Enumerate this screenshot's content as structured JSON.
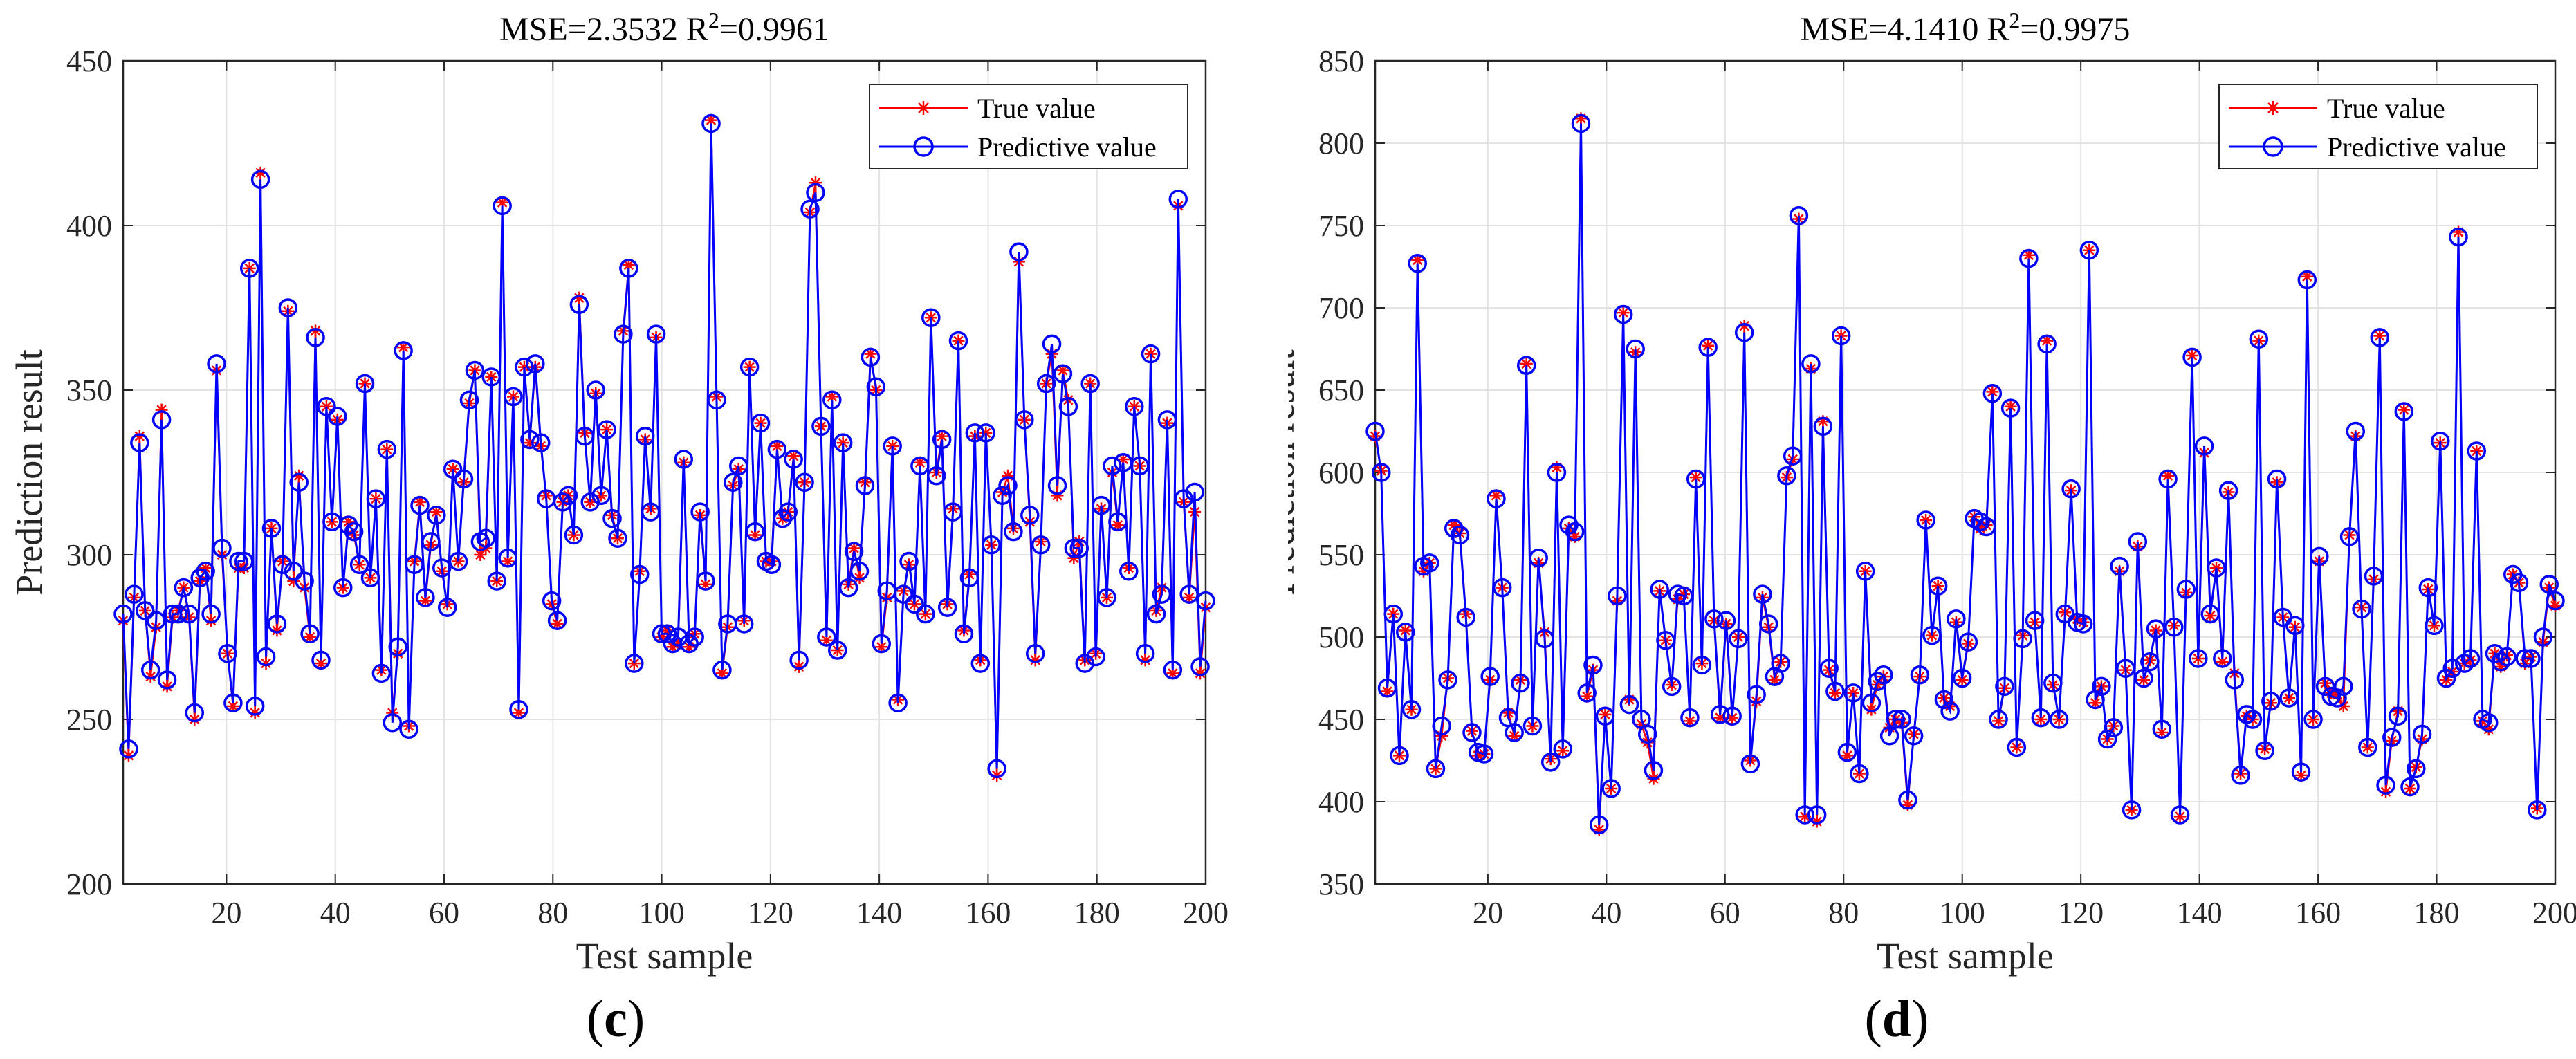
{
  "colors": {
    "true": "#ff0000",
    "pred": "#0000ff",
    "grid": "#e3e3e3",
    "axis": "#262626"
  },
  "chart_data": [
    {
      "id": "c",
      "type": "line",
      "panel_label": "c",
      "title_prefix": "MSE=2.3532 R",
      "title_sup": "2",
      "title_suffix": "=0.9961",
      "xlabel": "Test sample",
      "ylabel": "Prediction result",
      "xlim": [
        1,
        200
      ],
      "ylim": [
        200,
        450
      ],
      "xticks": [
        20,
        40,
        60,
        80,
        100,
        120,
        140,
        160,
        180,
        200
      ],
      "yticks": [
        200,
        250,
        300,
        350,
        400,
        450
      ],
      "grid": true,
      "legend_position": "top-right",
      "series": [
        {
          "name": "True value",
          "marker": "asterisk",
          "values": [
            280,
            239,
            287,
            336,
            283,
            263,
            278,
            344,
            260,
            281,
            283,
            290,
            281,
            250,
            292,
            296,
            280,
            356,
            300,
            270,
            254,
            296,
            296,
            387,
            252,
            416,
            267,
            308,
            277,
            298,
            374,
            292,
            324,
            290,
            275,
            368,
            267,
            345,
            310,
            341,
            290,
            310,
            306,
            297,
            352,
            293,
            317,
            265,
            332,
            252,
            270,
            363,
            248,
            298,
            316,
            286,
            303,
            313,
            295,
            285,
            326,
            298,
            322,
            346,
            356,
            300,
            302,
            354,
            292,
            407,
            298,
            348,
            252,
            357,
            334,
            357,
            333,
            318,
            285,
            279,
            316,
            318,
            306,
            378,
            337,
            316,
            349,
            318,
            338,
            312,
            305,
            368,
            388,
            267,
            295,
            335,
            314,
            366,
            275,
            277,
            272,
            273,
            328,
            272,
            276,
            312,
            291,
            432,
            348,
            264,
            278,
            321,
            326,
            280,
            357,
            306,
            340,
            298,
            298,
            333,
            311,
            313,
            330,
            266,
            322,
            404,
            413,
            339,
            274,
            348,
            271,
            334,
            291,
            302,
            293,
            322,
            361,
            350,
            272,
            287,
            333,
            256,
            289,
            297,
            285,
            328,
            282,
            372,
            325,
            336,
            285,
            314,
            365,
            277,
            294,
            336,
            268,
            337,
            303,
            233,
            319,
            324,
            308,
            389,
            341,
            310,
            268,
            304,
            352,
            361,
            318,
            356,
            347,
            299,
            304,
            268,
            352,
            270,
            314,
            287,
            325,
            309,
            329,
            296,
            345,
            327,
            268,
            361,
            283,
            290,
            340,
            264,
            406,
            316,
            287,
            313,
            264,
            284
          ],
          "pred": [
            282,
            241,
            288,
            334,
            283,
            265,
            280,
            341,
            262,
            282,
            282,
            290,
            282,
            252,
            293,
            295,
            282,
            358,
            302,
            270,
            255,
            298,
            298,
            387,
            254,
            414,
            269,
            308,
            279,
            297,
            375,
            295,
            322,
            292,
            276,
            366,
            268,
            345,
            310,
            342,
            290,
            309,
            307,
            297,
            352,
            293,
            317,
            264,
            332,
            249,
            272,
            362,
            247,
            297,
            315,
            287,
            304,
            312,
            296,
            284,
            326,
            298,
            323,
            347,
            356,
            304,
            305,
            354,
            292,
            406,
            299,
            348,
            253,
            357,
            335,
            358,
            334,
            317,
            286,
            280,
            316,
            318,
            306,
            376,
            336,
            316,
            350,
            318,
            338,
            311,
            305,
            367,
            387,
            267,
            294,
            336,
            313,
            367,
            276,
            276,
            273,
            275,
            329,
            273,
            275,
            313,
            292,
            431,
            347,
            265,
            279,
            322,
            327,
            279,
            357,
            307,
            340,
            298,
            297,
            332,
            311,
            313,
            329,
            268,
            322,
            405,
            410,
            339,
            275,
            347,
            271,
            334,
            290,
            301,
            295,
            321,
            360,
            351,
            273,
            289,
            333,
            255,
            288,
            298,
            285,
            327,
            282,
            372,
            324,
            335,
            284,
            313,
            365,
            276,
            293,
            337,
            267,
            337,
            303,
            235,
            318,
            321,
            307,
            392,
            341,
            312,
            270,
            303,
            352,
            364,
            321,
            355,
            345,
            302,
            302,
            267,
            352,
            269,
            315,
            287,
            327,
            310,
            328,
            295,
            345,
            327,
            270,
            361,
            282,
            288,
            341,
            265,
            408,
            317,
            288,
            319,
            266,
            286
          ]
        }
      ]
    },
    {
      "id": "d",
      "type": "line",
      "panel_label": "d",
      "title_prefix": "MSE=4.1410 R",
      "title_sup": "2",
      "title_suffix": "=0.9975",
      "xlabel": "Test sample",
      "ylabel": "Prediction result",
      "xlim": [
        1,
        200
      ],
      "ylim": [
        350,
        850
      ],
      "xticks": [
        20,
        40,
        60,
        80,
        100,
        120,
        140,
        160,
        180,
        200
      ],
      "yticks": [
        350,
        400,
        450,
        500,
        550,
        600,
        650,
        700,
        750,
        800,
        850
      ],
      "grid": true,
      "legend_position": "top-right",
      "series": [
        {
          "name": "True value",
          "marker": "asterisk",
          "values": [
            622,
            601,
            467,
            514,
            428,
            504,
            456,
            729,
            540,
            545,
            420,
            440,
            475,
            568,
            563,
            514,
            443,
            428,
            429,
            474,
            586,
            530,
            454,
            440,
            474,
            666,
            446,
            545,
            503,
            426,
            603,
            431,
            566,
            561,
            815,
            464,
            480,
            383,
            453,
            408,
            522,
            697,
            462,
            673,
            447,
            436,
            414,
            528,
            498,
            471,
            523,
            526,
            449,
            597,
            484,
            677,
            510,
            451,
            508,
            451,
            500,
            689,
            425,
            461,
            524,
            506,
            474,
            485,
            597,
            608,
            754,
            391,
            663,
            388,
            631,
            480,
            466,
            683,
            428,
            466,
            417,
            540,
            456,
            471,
            476,
            445,
            450,
            448,
            398,
            441,
            476,
            571,
            501,
            531,
            463,
            458,
            509,
            474,
            496,
            573,
            566,
            568,
            649,
            449,
            469,
            640,
            433,
            501,
            732,
            509,
            450,
            680,
            471,
            450,
            515,
            589,
            511,
            509,
            735,
            460,
            470,
            438,
            446,
            540,
            480,
            395,
            555,
            474,
            486,
            504,
            442,
            598,
            507,
            391,
            527,
            671,
            487,
            612,
            513,
            542,
            485,
            588,
            478,
            417,
            452,
            450,
            680,
            432,
            460,
            594,
            512,
            463,
            506,
            416,
            719,
            450,
            546,
            472,
            466,
            465,
            458,
            562,
            622,
            518,
            433,
            535,
            683,
            406,
            437,
            455,
            638,
            408,
            421,
            438,
            529,
            507,
            618,
            474,
            479,
            746,
            484,
            486,
            613,
            449,
            444,
            490,
            482,
            489,
            538,
            533,
            484,
            488,
            396,
            497,
            530,
            519
          ],
          "pred": [
            625,
            600,
            469,
            514,
            428,
            503,
            456,
            727,
            543,
            545,
            420,
            446,
            474,
            566,
            562,
            512,
            442,
            430,
            429,
            476,
            584,
            530,
            451,
            442,
            472,
            665,
            446,
            548,
            499,
            424,
            600,
            432,
            568,
            564,
            812,
            466,
            483,
            386,
            452,
            408,
            525,
            696,
            459,
            675,
            450,
            441,
            419,
            529,
            498,
            470,
            526,
            525,
            451,
            596,
            483,
            676,
            511,
            453,
            510,
            452,
            499,
            685,
            423,
            465,
            526,
            508,
            476,
            484,
            598,
            610,
            756,
            392,
            666,
            392,
            628,
            481,
            467,
            683,
            430,
            466,
            417,
            540,
            460,
            473,
            477,
            440,
            450,
            450,
            401,
            440,
            477,
            571,
            501,
            531,
            462,
            455,
            511,
            475,
            497,
            572,
            570,
            567,
            648,
            450,
            470,
            639,
            433,
            499,
            730,
            510,
            451,
            678,
            472,
            450,
            514,
            590,
            509,
            508,
            735,
            462,
            470,
            438,
            445,
            543,
            481,
            395,
            558,
            475,
            485,
            505,
            444,
            596,
            506,
            392,
            529,
            670,
            487,
            616,
            514,
            542,
            487,
            589,
            474,
            416,
            453,
            450,
            681,
            431,
            461,
            596,
            512,
            463,
            507,
            418,
            717,
            450,
            549,
            470,
            464,
            463,
            470,
            561,
            625,
            517,
            433,
            537,
            682,
            410,
            439,
            452,
            637,
            409,
            420,
            441,
            530,
            507,
            619,
            475,
            481,
            743,
            484,
            487,
            613,
            450,
            448,
            490,
            485,
            488,
            538,
            533,
            487,
            487,
            395,
            500,
            532,
            522
          ]
        }
      ]
    }
  ]
}
